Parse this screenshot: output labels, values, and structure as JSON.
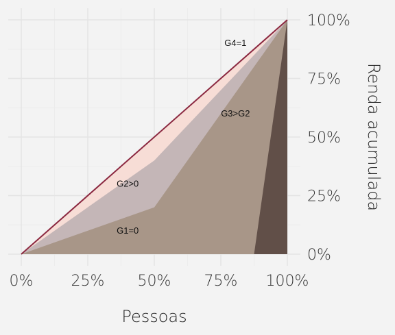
{
  "chart_data": {
    "type": "area",
    "xlabel": "Pessoas",
    "ylabel": "Renda acumulada",
    "xlim": [
      0,
      1
    ],
    "ylim": [
      0,
      1
    ],
    "x_ticks": [
      {
        "value": 0,
        "label": "0%"
      },
      {
        "value": 0.25,
        "label": "25%"
      },
      {
        "value": 0.5,
        "label": "50%"
      },
      {
        "value": 0.75,
        "label": "75%"
      },
      {
        "value": 1,
        "label": "100%"
      }
    ],
    "y_ticks": [
      {
        "value": 0,
        "label": "0%"
      },
      {
        "value": 0.25,
        "label": "25%"
      },
      {
        "value": 0.5,
        "label": "50%"
      },
      {
        "value": 0.75,
        "label": "75%"
      },
      {
        "value": 1,
        "label": "100%"
      }
    ],
    "y_axis_position": "right",
    "grid": true,
    "legend": "none",
    "series": [
      {
        "points": [
          [
            0,
            0
          ],
          [
            1,
            1
          ]
        ],
        "color": "#f7ddd6",
        "kind": "area"
      },
      {
        "points": [
          [
            0,
            0
          ],
          [
            0.5,
            0.4
          ],
          [
            1,
            1
          ]
        ],
        "color": "#c4b6b7",
        "kind": "area"
      },
      {
        "points": [
          [
            0,
            0
          ],
          [
            0.5,
            0.2
          ],
          [
            1,
            1
          ]
        ],
        "color": "#a89688",
        "kind": "area"
      },
      {
        "points": [
          [
            0,
            0
          ],
          [
            0.875,
            0
          ],
          [
            1,
            1
          ]
        ],
        "color": "#614f48",
        "kind": "area"
      },
      {
        "points": [
          [
            0,
            0
          ],
          [
            1,
            1
          ]
        ],
        "color": "#8b2840",
        "kind": "line"
      }
    ],
    "annotations": [
      {
        "text": "G4=1",
        "x": 0.805,
        "y": 0.9
      },
      {
        "text": "G3>G2",
        "x": 0.805,
        "y": 0.6
      },
      {
        "text": "G2>0",
        "x": 0.4,
        "y": 0.3
      },
      {
        "text": "G1=0",
        "x": 0.4,
        "y": 0.1
      }
    ]
  }
}
